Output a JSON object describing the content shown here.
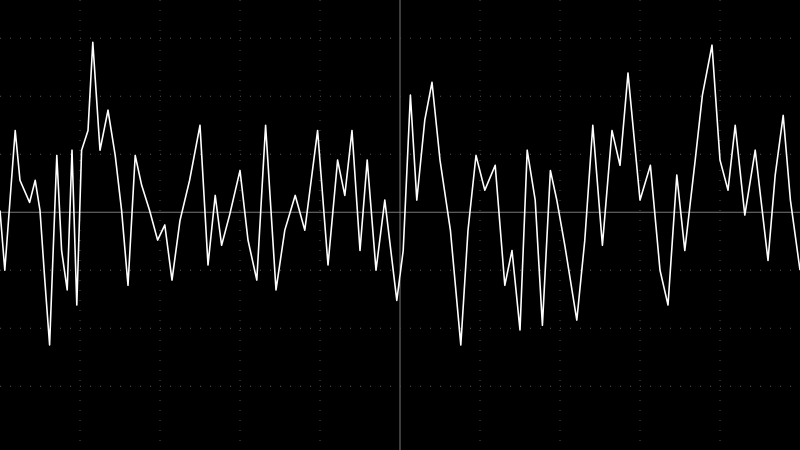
{
  "chart_data": {
    "type": "line",
    "color": "#ffffff",
    "grid": true,
    "xlim": [
      -5,
      5
    ],
    "ylim": [
      -4.1,
      3.66
    ],
    "xticks": [
      -4,
      -3,
      -2,
      -1,
      0,
      1,
      2,
      3,
      4
    ],
    "yticks": [
      -3,
      -2,
      -1,
      0,
      1,
      2,
      3
    ],
    "x": [
      -5,
      -4.94,
      -4.81,
      -4.75,
      -4.63,
      -4.56,
      -4.5,
      -4.44,
      -4.38,
      -4.29,
      -4.23,
      -4.16,
      -4.1,
      -4.04,
      -3.98,
      -3.9,
      -3.84,
      -3.75,
      -3.65,
      -3.56,
      -3.48,
      -3.4,
      -3.31,
      -3.23,
      -3.13,
      -3.03,
      -2.94,
      -2.85,
      -2.75,
      -2.63,
      -2.5,
      -2.4,
      -2.31,
      -2.23,
      -2.13,
      -2,
      -1.9,
      -1.79,
      -1.68,
      -1.55,
      -1.44,
      -1.31,
      -1.19,
      -1.03,
      -0.9,
      -0.78,
      -0.69,
      -0.6,
      -0.5,
      -0.41,
      -0.3,
      -0.19,
      -0.04,
      0.04,
      0.13,
      0.21,
      0.31,
      0.4,
      0.5,
      0.63,
      0.76,
      0.85,
      0.95,
      1.06,
      1.19,
      1.31,
      1.4,
      1.5,
      1.59,
      1.69,
      1.78,
      1.88,
      1.96,
      2.06,
      2.21,
      2.31,
      2.41,
      2.53,
      2.65,
      2.75,
      2.85,
      3,
      3.13,
      3.25,
      3.35,
      3.46,
      3.56,
      3.69,
      3.78,
      3.9,
      4,
      4.1,
      4.19,
      4.31,
      4.44,
      4.6,
      4.69,
      4.79,
      4.88,
      5
    ],
    "values": [
      0.03,
      -1,
      1.41,
      0.55,
      0.17,
      0.55,
      0.03,
      -1.17,
      -2.29,
      0.98,
      -0.66,
      -1.34,
      1.07,
      -1.6,
      1.07,
      1.41,
      2.93,
      1.07,
      1.76,
      0.98,
      0.03,
      -1.26,
      0.98,
      0.47,
      0.03,
      -0.48,
      -0.22,
      -1.17,
      -0.14,
      0.55,
      1.5,
      -0.91,
      0.29,
      -0.57,
      -0.05,
      0.72,
      -0.48,
      -1.17,
      1.5,
      -1.34,
      -0.31,
      0.29,
      -0.31,
      1.41,
      -0.91,
      0.9,
      0.29,
      1.41,
      -0.66,
      0.9,
      -1,
      0.21,
      -1.52,
      -0.66,
      2.02,
      0.21,
      1.59,
      2.24,
      0.9,
      -0.31,
      -2.29,
      -0.31,
      0.98,
      0.38,
      0.81,
      -1.26,
      -0.66,
      -2.03,
      1.07,
      0.21,
      -1.95,
      0.72,
      0.21,
      -0.57,
      -1.86,
      -0.48,
      1.5,
      -0.57,
      1.41,
      0.81,
      2.4,
      0.21,
      0.81,
      -1,
      -1.6,
      0.64,
      -0.66,
      0.9,
      2.02,
      2.88,
      0.9,
      0.38,
      1.5,
      -0.05,
      1.07,
      -0.83,
      0.64,
      1.67,
      0.21,
      -1
    ]
  }
}
